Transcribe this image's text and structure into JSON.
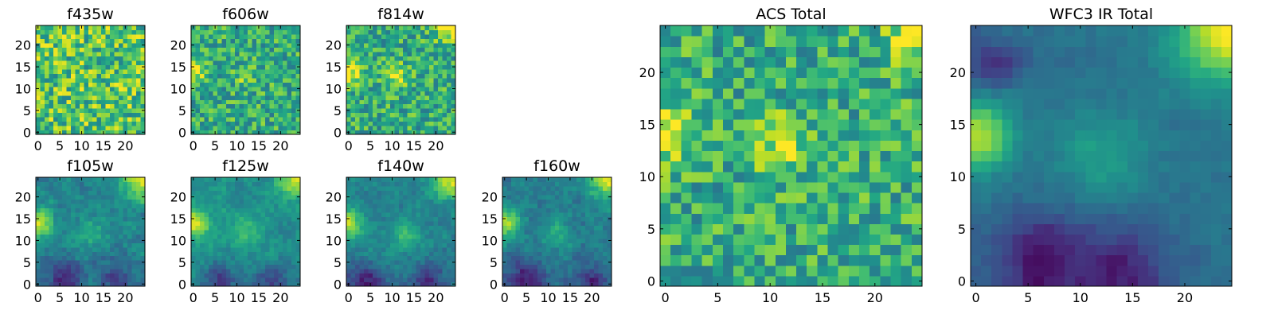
{
  "figure": {
    "background": "#ffffff",
    "colormap": "viridis"
  },
  "chart_data": [
    {
      "type": "heatmap",
      "title": "f435w",
      "size": 25,
      "xticks": [
        "0",
        "5",
        "10",
        "15",
        "20"
      ],
      "yticks": [
        "0",
        "5",
        "10",
        "15",
        "20"
      ],
      "seed": 11,
      "noise": 0.55,
      "base": 0.72,
      "hotspots": []
    },
    {
      "type": "heatmap",
      "title": "f606w",
      "size": 25,
      "xticks": [
        "0",
        "5",
        "10",
        "15",
        "20"
      ],
      "yticks": [
        "0",
        "5",
        "10",
        "15",
        "20"
      ],
      "seed": 23,
      "noise": 0.45,
      "base": 0.62,
      "hotspots": [
        {
          "x": 0,
          "y": 14,
          "r": 1.6,
          "a": 0.45
        },
        {
          "x": 12,
          "y": 13,
          "r": 1.6,
          "a": 0.2
        }
      ]
    },
    {
      "type": "heatmap",
      "title": "f814w",
      "size": 25,
      "xticks": [
        "0",
        "5",
        "10",
        "15",
        "20"
      ],
      "yticks": [
        "0",
        "5",
        "10",
        "15",
        "20"
      ],
      "seed": 37,
      "noise": 0.45,
      "base": 0.62,
      "hotspots": [
        {
          "x": 0,
          "y": 14,
          "r": 1.8,
          "a": 0.45
        },
        {
          "x": 24,
          "y": 24,
          "r": 2.5,
          "a": 0.45
        },
        {
          "x": 11,
          "y": 13,
          "r": 1.8,
          "a": 0.3
        }
      ]
    },
    {
      "type": "heatmap",
      "title": "f105w",
      "size": 25,
      "xticks": [
        "0",
        "5",
        "10",
        "15",
        "20"
      ],
      "yticks": [
        "0",
        "5",
        "10",
        "15",
        "20"
      ],
      "seed": 41,
      "noise": 0.28,
      "base": 0.45,
      "hotspots": [
        {
          "x": 0,
          "y": 14,
          "r": 2.2,
          "a": 0.55
        },
        {
          "x": 24,
          "y": 24,
          "r": 3,
          "a": 0.5
        },
        {
          "x": 12,
          "y": 12,
          "r": 2.5,
          "a": 0.2
        },
        {
          "x": 6,
          "y": 1,
          "r": 3,
          "a": -0.35
        },
        {
          "x": 18,
          "y": 1,
          "r": 3,
          "a": -0.3
        }
      ]
    },
    {
      "type": "heatmap",
      "title": "f125w",
      "size": 25,
      "xticks": [
        "0",
        "5",
        "10",
        "15",
        "20"
      ],
      "yticks": [
        "0",
        "5",
        "10",
        "15",
        "20"
      ],
      "seed": 53,
      "noise": 0.25,
      "base": 0.5,
      "hotspots": [
        {
          "x": 0,
          "y": 14,
          "r": 2.2,
          "a": 0.5
        },
        {
          "x": 24,
          "y": 24,
          "r": 3,
          "a": 0.5
        },
        {
          "x": 12,
          "y": 12,
          "r": 2.5,
          "a": 0.2
        },
        {
          "x": 6,
          "y": 1,
          "r": 3,
          "a": -0.3
        },
        {
          "x": 18,
          "y": 1,
          "r": 3,
          "a": -0.25
        }
      ]
    },
    {
      "type": "heatmap",
      "title": "f140w",
      "size": 25,
      "xticks": [
        "0",
        "5",
        "10",
        "15",
        "20"
      ],
      "yticks": [
        "0",
        "5",
        "10",
        "15",
        "20"
      ],
      "seed": 67,
      "noise": 0.25,
      "base": 0.45,
      "hotspots": [
        {
          "x": 0,
          "y": 14,
          "r": 2.2,
          "a": 0.55
        },
        {
          "x": 24,
          "y": 24,
          "r": 3,
          "a": 0.55
        },
        {
          "x": 13,
          "y": 11,
          "r": 2.5,
          "a": 0.25
        },
        {
          "x": 4,
          "y": 1,
          "r": 3,
          "a": -0.35
        },
        {
          "x": 18,
          "y": 1,
          "r": 3,
          "a": -0.3
        }
      ]
    },
    {
      "type": "heatmap",
      "title": "f160w",
      "size": 25,
      "xticks": [
        "0",
        "5",
        "10",
        "15",
        "20"
      ],
      "yticks": [
        "0",
        "5",
        "10",
        "15",
        "20"
      ],
      "seed": 79,
      "noise": 0.25,
      "base": 0.42,
      "hotspots": [
        {
          "x": 0,
          "y": 14,
          "r": 2.2,
          "a": 0.55
        },
        {
          "x": 24,
          "y": 24,
          "r": 3,
          "a": 0.55
        },
        {
          "x": 12,
          "y": 12,
          "r": 2.5,
          "a": 0.2
        },
        {
          "x": 5,
          "y": 1,
          "r": 3,
          "a": -0.35
        },
        {
          "x": 20,
          "y": 0,
          "r": 3,
          "a": -0.3
        }
      ]
    },
    {
      "type": "heatmap",
      "title": "ACS Total",
      "size": 25,
      "xticks": [
        "0",
        "5",
        "10",
        "15",
        "20"
      ],
      "yticks": [
        "0",
        "5",
        "10",
        "15",
        "20"
      ],
      "seed": 97,
      "noise": 0.45,
      "base": 0.62,
      "hotspots": [
        {
          "x": 0,
          "y": 14,
          "r": 1.8,
          "a": 0.45
        },
        {
          "x": 24,
          "y": 24,
          "r": 2,
          "a": 0.4
        },
        {
          "x": 11,
          "y": 13,
          "r": 1.8,
          "a": 0.3
        }
      ]
    },
    {
      "type": "heatmap",
      "title": "WFC3 IR Total",
      "size": 25,
      "xticks": [
        "0",
        "5",
        "10",
        "15",
        "20"
      ],
      "yticks": [
        "0",
        "5",
        "10",
        "15",
        "20"
      ],
      "seed": 113,
      "noise": 0.12,
      "base": 0.38,
      "hotspots": [
        {
          "x": 0,
          "y": 14,
          "r": 2.2,
          "a": 0.6
        },
        {
          "x": 24,
          "y": 24,
          "r": 3.5,
          "a": 0.6
        },
        {
          "x": 12,
          "y": 12,
          "r": 3,
          "a": 0.18
        },
        {
          "x": 6,
          "y": 2,
          "r": 3,
          "a": -0.35
        },
        {
          "x": 14,
          "y": 1,
          "r": 3,
          "a": -0.3
        },
        {
          "x": 2,
          "y": 21,
          "r": 1.5,
          "a": -0.3
        }
      ]
    }
  ]
}
